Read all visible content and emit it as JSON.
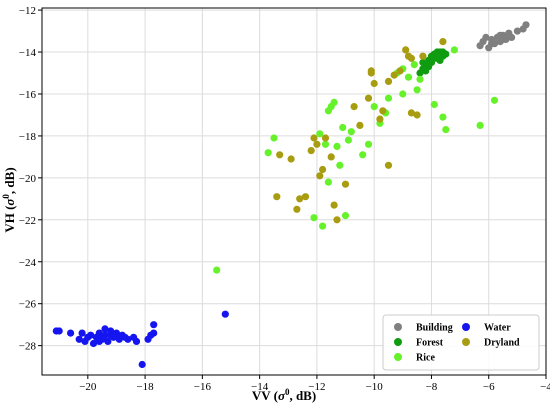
{
  "chart_data": {
    "type": "scatter",
    "title": "",
    "xlabel_main": "VV (",
    "xlabel_sigma": "σ",
    "xlabel_sup": "0",
    "xlabel_tail": ", dB)",
    "ylabel_main": "VH (",
    "ylabel_sigma": "σ",
    "ylabel_sup": "0",
    "ylabel_tail": ", dB)",
    "xlim": [
      -21.6,
      -4.0
    ],
    "ylim": [
      -29.4,
      -11.9
    ],
    "xticks": [
      -20,
      -18,
      -16,
      -14,
      -12,
      -10,
      -8,
      -6,
      -4
    ],
    "yticks": [
      -28,
      -26,
      -24,
      -22,
      -20,
      -18,
      -16,
      -14,
      -12
    ],
    "grid": true,
    "legend_position": "bottom-right",
    "legend_columns": 2,
    "series": [
      {
        "name": "Building",
        "color": "#808080",
        "points": [
          [
            -6.3,
            -13.7
          ],
          [
            -6.2,
            -13.5
          ],
          [
            -6.0,
            -13.8
          ],
          [
            -5.9,
            -13.4
          ],
          [
            -5.8,
            -13.6
          ],
          [
            -5.7,
            -13.3
          ],
          [
            -5.6,
            -13.5
          ],
          [
            -5.5,
            -13.2
          ],
          [
            -5.4,
            -13.4
          ],
          [
            -5.3,
            -13.1
          ],
          [
            -5.2,
            -13.3
          ],
          [
            -5.0,
            -13.0
          ],
          [
            -4.8,
            -12.9
          ],
          [
            -4.7,
            -12.7
          ],
          [
            -5.5,
            -13.4
          ],
          [
            -5.9,
            -13.6
          ],
          [
            -6.1,
            -13.3
          ],
          [
            -5.6,
            -13.2
          ]
        ]
      },
      {
        "name": "Water",
        "color": "#1515f0",
        "points": [
          [
            -21.1,
            -27.3
          ],
          [
            -21.0,
            -27.3
          ],
          [
            -20.6,
            -27.4
          ],
          [
            -20.3,
            -27.7
          ],
          [
            -20.2,
            -27.4
          ],
          [
            -20.1,
            -27.8
          ],
          [
            -19.9,
            -27.5
          ],
          [
            -19.8,
            -27.9
          ],
          [
            -19.7,
            -27.6
          ],
          [
            -19.6,
            -27.4
          ],
          [
            -19.5,
            -27.7
          ],
          [
            -19.4,
            -27.5
          ],
          [
            -19.3,
            -27.8
          ],
          [
            -19.2,
            -27.3
          ],
          [
            -19.1,
            -27.6
          ],
          [
            -19.0,
            -27.4
          ],
          [
            -18.9,
            -27.7
          ],
          [
            -18.8,
            -27.5
          ],
          [
            -18.6,
            -27.7
          ],
          [
            -18.4,
            -27.6
          ],
          [
            -18.3,
            -27.8
          ],
          [
            -18.1,
            -28.9
          ],
          [
            -17.9,
            -27.7
          ],
          [
            -17.8,
            -27.5
          ],
          [
            -17.7,
            -27.4
          ],
          [
            -17.7,
            -27.0
          ],
          [
            -15.2,
            -26.5
          ],
          [
            -19.6,
            -27.8
          ],
          [
            -19.2,
            -27.5
          ],
          [
            -18.7,
            -27.6
          ],
          [
            -20.0,
            -27.6
          ],
          [
            -19.4,
            -27.2
          ]
        ]
      },
      {
        "name": "Forest",
        "color": "#109c10",
        "points": [
          [
            -8.4,
            -15.0
          ],
          [
            -8.3,
            -14.8
          ],
          [
            -8.2,
            -14.6
          ],
          [
            -8.1,
            -14.4
          ],
          [
            -8.0,
            -14.2
          ],
          [
            -7.9,
            -14.1
          ],
          [
            -7.8,
            -14.3
          ],
          [
            -7.7,
            -14.0
          ],
          [
            -7.6,
            -14.2
          ],
          [
            -7.6,
            -14.0
          ],
          [
            -7.5,
            -14.1
          ],
          [
            -8.3,
            -14.5
          ],
          [
            -8.0,
            -14.5
          ],
          [
            -7.9,
            -14.3
          ],
          [
            -8.2,
            -14.9
          ],
          [
            -7.7,
            -14.4
          ],
          [
            -8.1,
            -14.7
          ],
          [
            -7.8,
            -14.0
          ]
        ]
      },
      {
        "name": "Rice",
        "color": "#66f22a",
        "points": [
          [
            -15.5,
            -24.4
          ],
          [
            -13.7,
            -18.8
          ],
          [
            -13.5,
            -18.1
          ],
          [
            -12.1,
            -21.9
          ],
          [
            -11.8,
            -22.3
          ],
          [
            -11.9,
            -17.9
          ],
          [
            -11.7,
            -18.4
          ],
          [
            -11.6,
            -16.8
          ],
          [
            -11.5,
            -16.6
          ],
          [
            -11.4,
            -16.4
          ],
          [
            -11.3,
            -18.5
          ],
          [
            -11.2,
            -19.4
          ],
          [
            -11.1,
            -17.6
          ],
          [
            -11.0,
            -21.8
          ],
          [
            -10.9,
            -18.2
          ],
          [
            -10.8,
            -17.8
          ],
          [
            -10.4,
            -18.9
          ],
          [
            -10.2,
            -18.4
          ],
          [
            -9.8,
            -17.4
          ],
          [
            -9.6,
            -16.9
          ],
          [
            -9.5,
            -16.2
          ],
          [
            -9.0,
            -16.0
          ],
          [
            -9.2,
            -15.0
          ],
          [
            -9.0,
            -14.8
          ],
          [
            -8.8,
            -15.2
          ],
          [
            -8.6,
            -14.6
          ],
          [
            -8.4,
            -15.3
          ],
          [
            -7.9,
            -16.5
          ],
          [
            -7.6,
            -17.1
          ],
          [
            -7.5,
            -17.7
          ],
          [
            -7.2,
            -13.9
          ],
          [
            -6.3,
            -17.5
          ],
          [
            -5.8,
            -16.3
          ],
          [
            -10.0,
            -16.6
          ],
          [
            -11.6,
            -20.2
          ],
          [
            -8.5,
            -15.8
          ]
        ]
      },
      {
        "name": "Dryland",
        "color": "#a89c10",
        "points": [
          [
            -13.4,
            -20.9
          ],
          [
            -13.3,
            -18.9
          ],
          [
            -12.9,
            -19.1
          ],
          [
            -12.7,
            -21.5
          ],
          [
            -12.6,
            -21.0
          ],
          [
            -12.4,
            -20.9
          ],
          [
            -12.2,
            -18.7
          ],
          [
            -12.1,
            -18.1
          ],
          [
            -12.0,
            -18.4
          ],
          [
            -11.9,
            -19.9
          ],
          [
            -11.8,
            -19.6
          ],
          [
            -11.7,
            -18.1
          ],
          [
            -11.5,
            -19.0
          ],
          [
            -11.4,
            -21.3
          ],
          [
            -11.3,
            -22.0
          ],
          [
            -11.0,
            -20.3
          ],
          [
            -10.7,
            -16.6
          ],
          [
            -10.5,
            -17.5
          ],
          [
            -10.2,
            -16.2
          ],
          [
            -10.1,
            -15.0
          ],
          [
            -10.0,
            -15.5
          ],
          [
            -9.8,
            -17.2
          ],
          [
            -9.7,
            -16.8
          ],
          [
            -9.5,
            -15.4
          ],
          [
            -9.5,
            -19.4
          ],
          [
            -9.3,
            -15.1
          ],
          [
            -9.1,
            -14.9
          ],
          [
            -8.9,
            -13.9
          ],
          [
            -8.7,
            -14.3
          ],
          [
            -8.7,
            -16.9
          ],
          [
            -8.5,
            -17.0
          ],
          [
            -8.3,
            -14.2
          ],
          [
            -7.6,
            -13.5
          ],
          [
            -10.1,
            -14.9
          ],
          [
            -8.8,
            -14.2
          ]
        ]
      }
    ],
    "legend": [
      {
        "label": "Building",
        "color": "#808080"
      },
      {
        "label": "Water",
        "color": "#1515f0"
      },
      {
        "label": "Forest",
        "color": "#109c10"
      },
      {
        "label": "Dryland",
        "color": "#a89c10"
      },
      {
        "label": "Rice",
        "color": "#66f22a"
      }
    ]
  }
}
